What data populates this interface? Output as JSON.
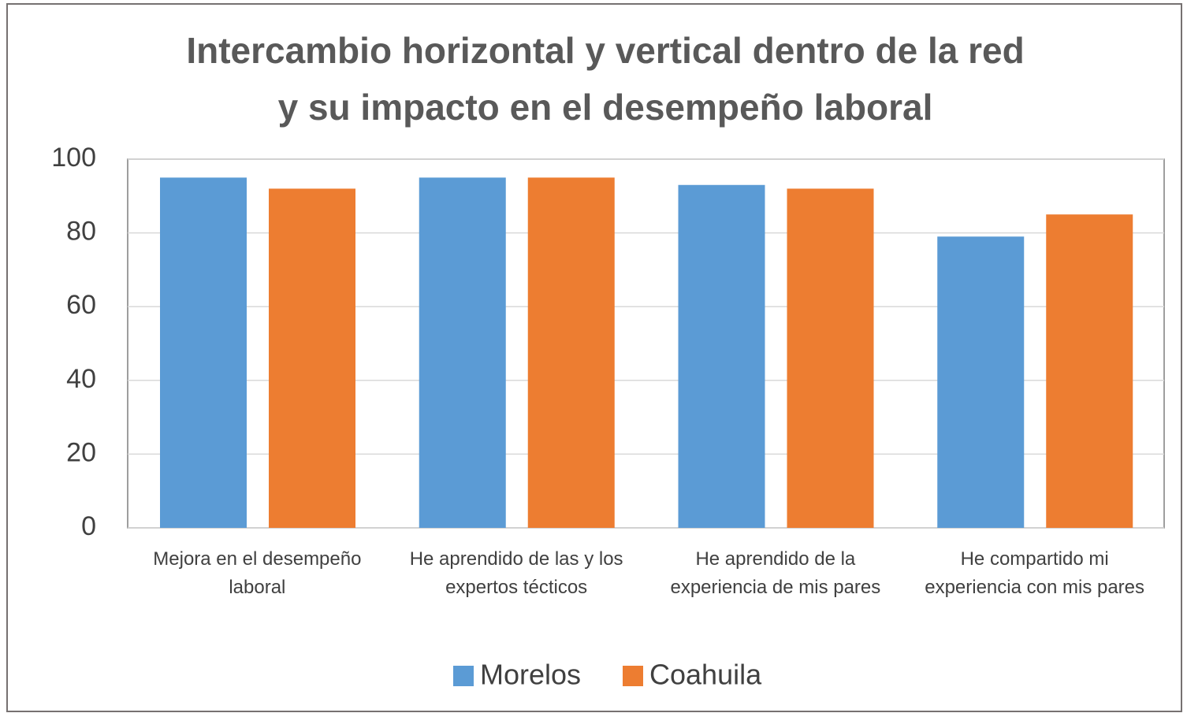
{
  "chart_data": {
    "type": "bar",
    "title": [
      "Intercambio horizontal y vertical dentro de la red",
      "y su impacto en el desempeño laboral"
    ],
    "categories": [
      "Mejora en el desempeño laboral",
      "He aprendido de las y los expertos técticos",
      "He aprendido de la experiencia de mis pares",
      "He compartido mi experiencia con mis pares"
    ],
    "series": [
      {
        "name": "Morelos",
        "color": "#5b9bd5",
        "values": [
          95,
          95,
          93,
          79
        ]
      },
      {
        "name": "Coahuila",
        "color": "#ed7d31",
        "values": [
          92,
          95,
          92,
          85
        ]
      }
    ],
    "ylim": [
      0,
      100
    ],
    "yticks": [
      0,
      20,
      40,
      60,
      80,
      100
    ],
    "grid": true,
    "legend": "bottom"
  }
}
